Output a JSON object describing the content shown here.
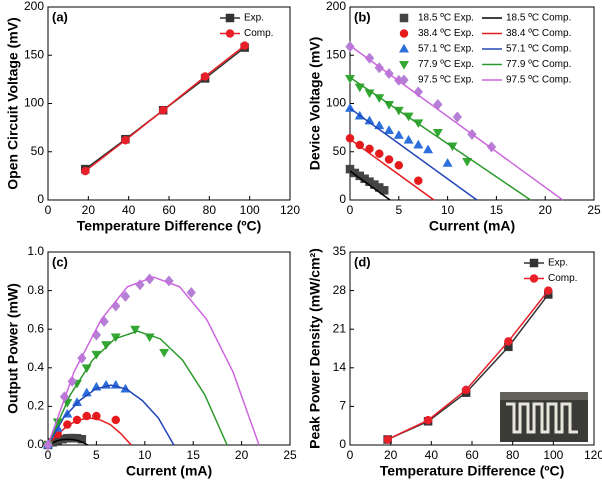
{
  "chart_data": [
    {
      "type": "line",
      "panel_label": "(a)",
      "x_label": "Temperature Difference (ºC)",
      "y_label": "Open Circuit Voltage (mV)",
      "x": [
        18.5,
        38.4,
        57.1,
        77.9,
        97.5
      ],
      "series": [
        {
          "name": "Exp.",
          "color": "#333333",
          "marker": "square",
          "style": "line+markers",
          "values": [
            32,
            63,
            93,
            126,
            158
          ]
        },
        {
          "name": "Comp.",
          "color": "#e8202a",
          "marker": "circle",
          "style": "line+markers",
          "values": [
            30,
            62,
            93,
            128,
            160
          ]
        }
      ],
      "xlim": [
        0,
        120
      ],
      "xticks": [
        0,
        20,
        40,
        60,
        80,
        100,
        120
      ],
      "ylim": [
        0,
        200
      ],
      "yticks": [
        0,
        50,
        100,
        150,
        200
      ],
      "legend": "upper right",
      "legend_columns": 1
    },
    {
      "type": "scatter",
      "panel_label": "(b)",
      "x_label": "Current (mA)",
      "y_label": "Device Voltage (mV)",
      "series": [
        {
          "name": "18.5 ºC Exp.",
          "color": "#444444",
          "marker": "square",
          "style": "markers",
          "x": [
            0,
            0.5,
            1,
            1.5,
            2,
            2.5,
            3,
            3.5
          ],
          "values": [
            32,
            28,
            25,
            22,
            19,
            16,
            13,
            10
          ]
        },
        {
          "name": "18.5 ºC Comp.",
          "color": "#000000",
          "style": "line",
          "x": [
            0,
            4.1
          ],
          "values": [
            30,
            0
          ]
        },
        {
          "name": "38.4 ºC Exp.",
          "color": "#e41a1c",
          "marker": "circle",
          "style": "markers",
          "x": [
            0,
            1,
            2,
            3,
            4,
            5,
            7
          ],
          "values": [
            64,
            57,
            53,
            48,
            42,
            36,
            20
          ]
        },
        {
          "name": "38.4 ºC Comp.",
          "color": "#e41a1c",
          "style": "line",
          "x": [
            0,
            8.6
          ],
          "values": [
            63,
            0
          ]
        },
        {
          "name": "57.1 ºC Exp.",
          "color": "#2a6fdb",
          "marker": "triangle-up",
          "style": "markers",
          "x": [
            0,
            1,
            2,
            3,
            4,
            5,
            6,
            7,
            8,
            10
          ],
          "values": [
            95,
            87,
            82,
            77,
            72,
            67,
            62,
            57,
            52,
            38
          ]
        },
        {
          "name": "57.1 ºC Comp.",
          "color": "#2346b8",
          "style": "line",
          "x": [
            0,
            13
          ],
          "values": [
            95,
            0
          ]
        },
        {
          "name": "77.9 ºC Exp.",
          "color": "#33a833",
          "marker": "triangle-down",
          "style": "markers",
          "x": [
            0,
            1,
            2,
            3,
            4,
            5,
            6,
            7,
            9,
            10.5,
            12
          ],
          "values": [
            126,
            117,
            111,
            106,
            99,
            93,
            87,
            80,
            70,
            56,
            40
          ]
        },
        {
          "name": "77.9 ºC Comp.",
          "color": "#2a9a2a",
          "style": "line",
          "x": [
            0,
            18.5
          ],
          "values": [
            127,
            0
          ]
        },
        {
          "name": "97.5 ºC Exp.",
          "color": "#b67fd6",
          "marker": "diamond",
          "style": "markers",
          "x": [
            0,
            2,
            3,
            4,
            5,
            7,
            9,
            11,
            12.5,
            14.5
          ],
          "values": [
            159,
            147,
            137,
            131,
            124,
            112,
            99,
            86,
            68,
            55
          ]
        },
        {
          "name": "97.5 ºC Comp.",
          "color": "#cc66dd",
          "style": "line",
          "x": [
            0,
            21.8
          ],
          "values": [
            160,
            0
          ]
        }
      ],
      "xlim": [
        0,
        25
      ],
      "xticks": [
        0,
        5,
        10,
        15,
        20,
        25
      ],
      "ylim": [
        0,
        200
      ],
      "yticks": [
        0,
        50,
        100,
        150,
        200
      ],
      "legend": "upper right",
      "legend_columns": 2
    },
    {
      "type": "scatter",
      "panel_label": "(c)",
      "x_label": "Current (mA)",
      "y_label": "Output Power (mW)",
      "series": [
        {
          "color": "#444444",
          "marker": "square",
          "style": "markers",
          "x": [
            0,
            0.5,
            1,
            1.5,
            2,
            2.5,
            3,
            3.5
          ],
          "values": [
            0,
            0.014,
            0.025,
            0.03,
            0.035,
            0.036,
            0.035,
            0.03
          ]
        },
        {
          "color": "#000000",
          "style": "line",
          "x": [
            0,
            0.5,
            1.0,
            1.5,
            2.05,
            2.6,
            3.1,
            3.6,
            4.1
          ],
          "values": [
            0,
            0.013,
            0.023,
            0.028,
            0.03,
            0.028,
            0.023,
            0.013,
            0
          ]
        },
        {
          "color": "#e41a1c",
          "marker": "circle",
          "style": "markers",
          "x": [
            0,
            1,
            2,
            3,
            4,
            5,
            7
          ],
          "values": [
            0,
            0.057,
            0.106,
            0.13,
            0.15,
            0.15,
            0.13
          ]
        },
        {
          "color": "#e41a1c",
          "style": "line",
          "x": [
            0,
            1.1,
            2.15,
            3.2,
            4.3,
            5.4,
            6.45,
            7.5,
            8.6
          ],
          "values": [
            0,
            0.06,
            0.105,
            0.13,
            0.14,
            0.13,
            0.105,
            0.06,
            0
          ]
        },
        {
          "color": "#2a6fdb",
          "marker": "triangle-up",
          "style": "markers",
          "x": [
            0,
            1,
            2,
            3,
            4,
            5,
            6,
            7,
            8
          ],
          "values": [
            0,
            0.087,
            0.16,
            0.22,
            0.27,
            0.3,
            0.31,
            0.31,
            0.29
          ]
        },
        {
          "color": "#2346b8",
          "style": "line",
          "x": [
            0,
            1.6,
            3.25,
            4.9,
            6.5,
            8.1,
            9.75,
            11.4,
            13
          ],
          "values": [
            0,
            0.14,
            0.23,
            0.29,
            0.31,
            0.29,
            0.23,
            0.14,
            0
          ]
        },
        {
          "color": "#33a833",
          "marker": "triangle-down",
          "style": "markers",
          "x": [
            0,
            1,
            2,
            3,
            4,
            5,
            6,
            7,
            9,
            10.5,
            12
          ],
          "values": [
            0,
            0.12,
            0.22,
            0.32,
            0.4,
            0.47,
            0.52,
            0.56,
            0.6,
            0.56,
            0.48
          ]
        },
        {
          "color": "#2a9a2a",
          "style": "line",
          "x": [
            0,
            2.3,
            4.6,
            6.9,
            9.25,
            11.6,
            13.9,
            16.2,
            18.5
          ],
          "values": [
            0,
            0.26,
            0.44,
            0.55,
            0.59,
            0.55,
            0.44,
            0.26,
            0
          ]
        },
        {
          "color": "#b67fd6",
          "marker": "diamond",
          "style": "markers",
          "x": [
            0,
            1.7,
            2.5,
            3.5,
            5,
            5.8,
            7,
            8,
            9.5,
            10.5,
            12.5,
            14.8
          ],
          "values": [
            0,
            0.25,
            0.33,
            0.45,
            0.57,
            0.64,
            0.72,
            0.77,
            0.83,
            0.86,
            0.85,
            0.79
          ]
        },
        {
          "color": "#cc66dd",
          "style": "line",
          "x": [
            0,
            2.7,
            5.5,
            8.2,
            10.9,
            13.6,
            16.4,
            19.1,
            21.8
          ],
          "values": [
            0,
            0.38,
            0.65,
            0.82,
            0.87,
            0.82,
            0.65,
            0.38,
            0
          ]
        }
      ],
      "xlim": [
        0,
        25
      ],
      "xticks": [
        0,
        5,
        10,
        15,
        20,
        25
      ],
      "ylim": [
        0,
        1.0
      ],
      "yticks": [
        {
          "value": 0,
          "label": "0.0"
        },
        0.2,
        0.4,
        0.6,
        0.8,
        {
          "value": 1,
          "label": "1.0"
        }
      ]
    },
    {
      "type": "line",
      "panel_label": "(d)",
      "x_label": "Temperature Difference (ºC)",
      "y_label": "Peak Power Density (mW/cm²)",
      "x": [
        18.5,
        38.4,
        57.1,
        77.9,
        97.5
      ],
      "series": [
        {
          "name": "Exp.",
          "color": "#333333",
          "marker": "square",
          "style": "line+markers",
          "values": [
            1,
            4.3,
            9.5,
            17.8,
            27.3
          ]
        },
        {
          "name": "Comp.",
          "color": "#e8202a",
          "marker": "circle",
          "style": "line+markers",
          "values": [
            1,
            4.5,
            10,
            18.8,
            28
          ]
        }
      ],
      "xlim": [
        0,
        120
      ],
      "xticks": [
        0,
        20,
        40,
        60,
        80,
        100,
        120
      ],
      "ylim": [
        0,
        35
      ],
      "yticks": [
        0,
        7,
        14,
        21,
        28,
        35
      ],
      "legend": "upper right",
      "legend_columns": 1
    }
  ]
}
